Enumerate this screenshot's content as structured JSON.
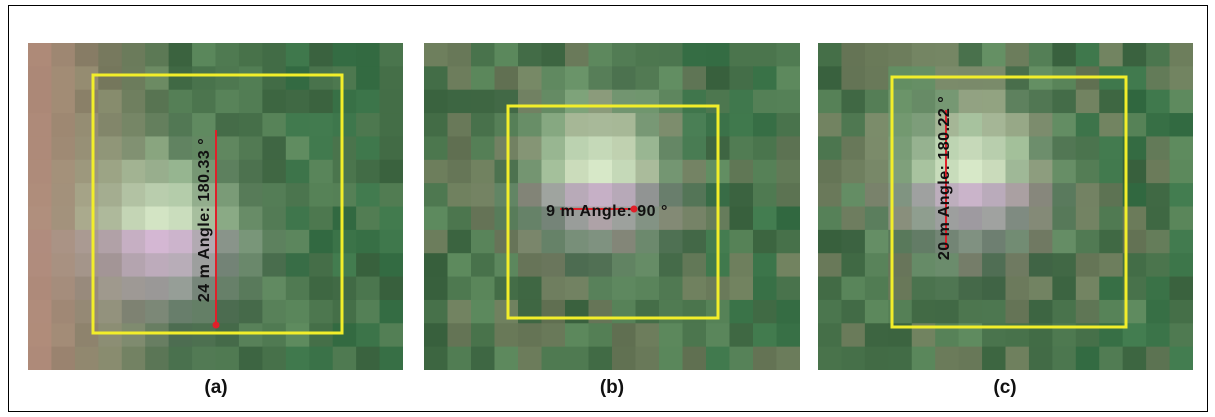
{
  "panels": [
    {
      "label": "(a)",
      "measurement": "24 m Angle: 180.33 °"
    },
    {
      "label": "(b)",
      "measurement": "9 m Angle: 90 °"
    },
    {
      "label": "(c)",
      "measurement": "20 m Angle: 180.22 °"
    }
  ]
}
